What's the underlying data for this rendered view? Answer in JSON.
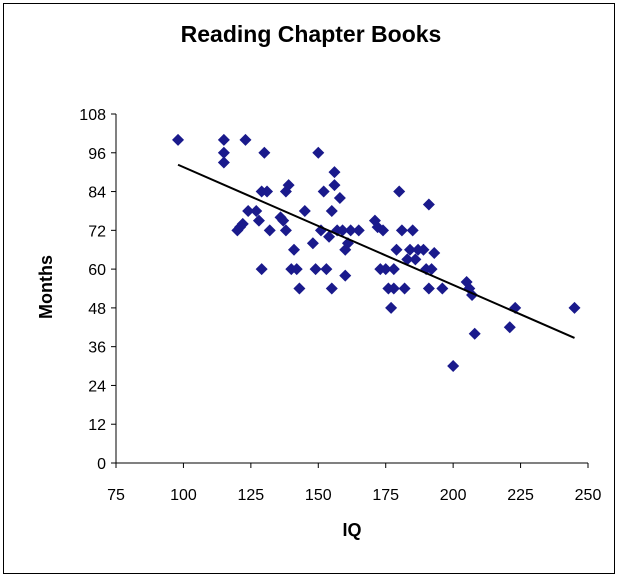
{
  "chart_data": {
    "type": "scatter",
    "title": "Reading Chapter Books",
    "xlabel": "IQ",
    "ylabel": "Months",
    "xlim": [
      75,
      250
    ],
    "ylim": [
      0,
      108
    ],
    "xticks": [
      75,
      100,
      125,
      150,
      175,
      200,
      225,
      250
    ],
    "yticks": [
      0,
      12,
      24,
      36,
      48,
      60,
      72,
      84,
      96,
      108
    ],
    "grid": false,
    "legend": "none",
    "marker": "diamond",
    "marker_color": "#1a1a8c",
    "trendline": {
      "type": "linear",
      "color": "#000000",
      "x": [
        98,
        245
      ],
      "y": [
        92.3,
        38.7
      ]
    },
    "points": [
      [
        98,
        100
      ],
      [
        115,
        100
      ],
      [
        115,
        96
      ],
      [
        115,
        93
      ],
      [
        123,
        100
      ],
      [
        130,
        96
      ],
      [
        120,
        72
      ],
      [
        121,
        73
      ],
      [
        122,
        74
      ],
      [
        124,
        78
      ],
      [
        127,
        78
      ],
      [
        128,
        75
      ],
      [
        129,
        84
      ],
      [
        131,
        84
      ],
      [
        132,
        72
      ],
      [
        129,
        60
      ],
      [
        136,
        76
      ],
      [
        137,
        75
      ],
      [
        138,
        84
      ],
      [
        138,
        72
      ],
      [
        139,
        86
      ],
      [
        140,
        60
      ],
      [
        141,
        66
      ],
      [
        142,
        60
      ],
      [
        143,
        54
      ],
      [
        145,
        78
      ],
      [
        148,
        68
      ],
      [
        149,
        60
      ],
      [
        150,
        96
      ],
      [
        151,
        72
      ],
      [
        152,
        84
      ],
      [
        153,
        60
      ],
      [
        154,
        70
      ],
      [
        155,
        54
      ],
      [
        155,
        78
      ],
      [
        156,
        86
      ],
      [
        156,
        90
      ],
      [
        157,
        72
      ],
      [
        158,
        82
      ],
      [
        159,
        72
      ],
      [
        160,
        66
      ],
      [
        161,
        68
      ],
      [
        162,
        72
      ],
      [
        160,
        58
      ],
      [
        165,
        72
      ],
      [
        171,
        75
      ],
      [
        172,
        73
      ],
      [
        173,
        60
      ],
      [
        174,
        72
      ],
      [
        175,
        60
      ],
      [
        176,
        54
      ],
      [
        177,
        48
      ],
      [
        178,
        54
      ],
      [
        178,
        60
      ],
      [
        179,
        66
      ],
      [
        180,
        84
      ],
      [
        181,
        72
      ],
      [
        182,
        54
      ],
      [
        183,
        63
      ],
      [
        184,
        66
      ],
      [
        185,
        72
      ],
      [
        186,
        63
      ],
      [
        187,
        66
      ],
      [
        189,
        66
      ],
      [
        190,
        60
      ],
      [
        191,
        80
      ],
      [
        191,
        54
      ],
      [
        192,
        60
      ],
      [
        193,
        65
      ],
      [
        196,
        54
      ],
      [
        200,
        30
      ],
      [
        205,
        56
      ],
      [
        206,
        54
      ],
      [
        207,
        52
      ],
      [
        208,
        40
      ],
      [
        221,
        42
      ],
      [
        223,
        48
      ],
      [
        245,
        48
      ]
    ]
  }
}
